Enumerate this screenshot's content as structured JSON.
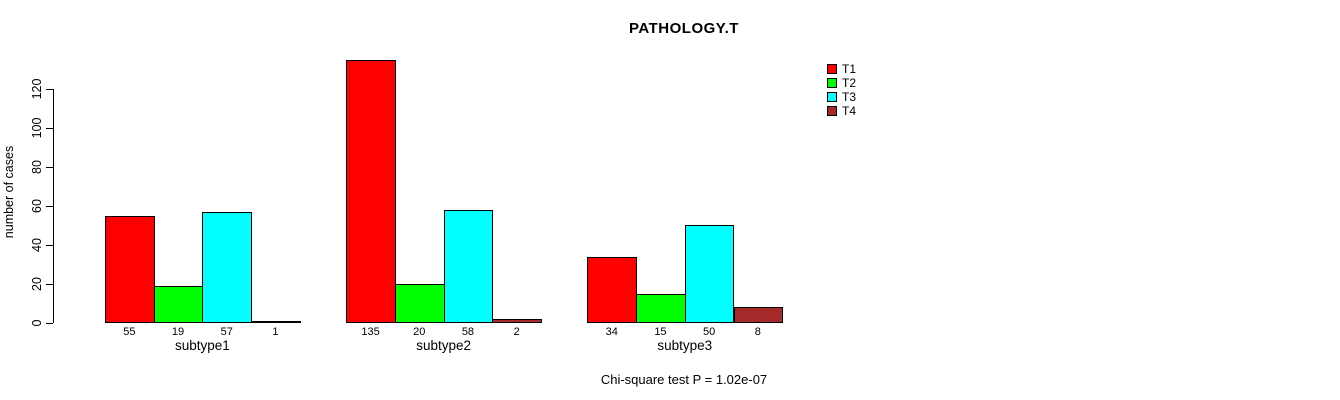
{
  "title": "PATHOLOGY.T",
  "footer": "Chi-square test P = 1.02e-07",
  "colors": {
    "background": "#FFFFFF",
    "axis": "#000000",
    "text": "#000000",
    "bar_border": "#000000"
  },
  "chart_data": {
    "type": "bar",
    "title": "PATHOLOGY.T",
    "categories": [
      "subtype1",
      "subtype2",
      "subtype3"
    ],
    "series": [
      {
        "name": "T1",
        "color": "#FF0000",
        "values": [
          55,
          135,
          34
        ]
      },
      {
        "name": "T2",
        "color": "#00FF00",
        "values": [
          19,
          20,
          15
        ]
      },
      {
        "name": "T3",
        "color": "#00FFFF",
        "values": [
          57,
          58,
          50
        ]
      },
      {
        "name": "T4",
        "color": "#A52A2A",
        "values": [
          1,
          2,
          8
        ]
      }
    ],
    "xlabel": "",
    "ylabel": "number of cases",
    "yticks": [
      0,
      20,
      40,
      60,
      80,
      100,
      120
    ],
    "ylim": [
      0,
      135
    ],
    "bar_value_labels": true,
    "legend_position": "top-right",
    "legend_entries": [
      "T1",
      "T2",
      "T3",
      "T4"
    ],
    "grid": false,
    "annotation": "Chi-square test P = 1.02e-07"
  }
}
